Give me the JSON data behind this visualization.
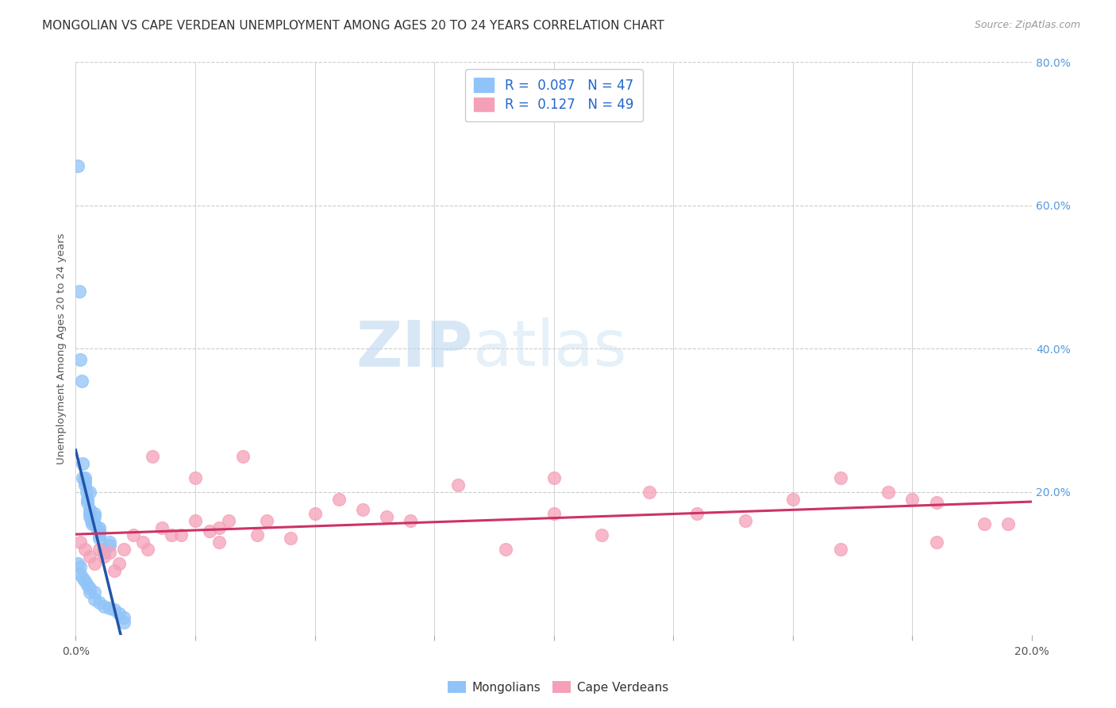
{
  "title": "MONGOLIAN VS CAPE VERDEAN UNEMPLOYMENT AMONG AGES 20 TO 24 YEARS CORRELATION CHART",
  "source": "Source: ZipAtlas.com",
  "ylabel": "Unemployment Among Ages 20 to 24 years",
  "xmin": 0.0,
  "xmax": 0.2,
  "ymin": 0.0,
  "ymax": 0.8,
  "mongolian_R": "0.087",
  "mongolian_N": "47",
  "capeverdean_R": "0.127",
  "capeverdean_N": "49",
  "mongolian_color": "#90c4f8",
  "capeverdean_color": "#f5a0b8",
  "mongolian_trend_color": "#2255aa",
  "capeverdean_trend_color": "#cc3366",
  "legend_label_mongolian": "Mongolians",
  "legend_label_capeverdean": "Cape Verdeans",
  "mongolian_x": [
    0.0005,
    0.0008,
    0.001,
    0.0012,
    0.0015,
    0.0015,
    0.002,
    0.002,
    0.002,
    0.0022,
    0.0025,
    0.0025,
    0.003,
    0.003,
    0.003,
    0.003,
    0.0032,
    0.0035,
    0.004,
    0.004,
    0.004,
    0.0045,
    0.005,
    0.005,
    0.005,
    0.005,
    0.006,
    0.006,
    0.007,
    0.007,
    0.0005,
    0.001,
    0.001,
    0.0015,
    0.002,
    0.0025,
    0.003,
    0.003,
    0.004,
    0.004,
    0.005,
    0.006,
    0.007,
    0.008,
    0.009,
    0.01,
    0.01
  ],
  "mongolian_y": [
    0.655,
    0.48,
    0.385,
    0.355,
    0.24,
    0.22,
    0.215,
    0.21,
    0.22,
    0.2,
    0.19,
    0.185,
    0.175,
    0.17,
    0.165,
    0.2,
    0.16,
    0.155,
    0.17,
    0.165,
    0.155,
    0.15,
    0.145,
    0.14,
    0.135,
    0.15,
    0.115,
    0.12,
    0.13,
    0.125,
    0.1,
    0.095,
    0.085,
    0.08,
    0.075,
    0.07,
    0.065,
    0.06,
    0.06,
    0.05,
    0.045,
    0.04,
    0.038,
    0.035,
    0.03,
    0.025,
    0.018
  ],
  "capeverdean_x": [
    0.001,
    0.002,
    0.003,
    0.004,
    0.005,
    0.006,
    0.007,
    0.008,
    0.009,
    0.01,
    0.012,
    0.014,
    0.015,
    0.016,
    0.018,
    0.02,
    0.022,
    0.025,
    0.025,
    0.028,
    0.03,
    0.03,
    0.032,
    0.035,
    0.038,
    0.04,
    0.045,
    0.05,
    0.055,
    0.06,
    0.065,
    0.07,
    0.08,
    0.09,
    0.1,
    0.1,
    0.11,
    0.12,
    0.13,
    0.14,
    0.15,
    0.16,
    0.16,
    0.17,
    0.175,
    0.18,
    0.18,
    0.19,
    0.195
  ],
  "capeverdean_y": [
    0.13,
    0.12,
    0.11,
    0.1,
    0.12,
    0.11,
    0.115,
    0.09,
    0.1,
    0.12,
    0.14,
    0.13,
    0.12,
    0.25,
    0.15,
    0.14,
    0.14,
    0.22,
    0.16,
    0.145,
    0.15,
    0.13,
    0.16,
    0.25,
    0.14,
    0.16,
    0.135,
    0.17,
    0.19,
    0.175,
    0.165,
    0.16,
    0.21,
    0.12,
    0.22,
    0.17,
    0.14,
    0.2,
    0.17,
    0.16,
    0.19,
    0.12,
    0.22,
    0.2,
    0.19,
    0.185,
    0.13,
    0.155,
    0.155
  ],
  "title_fontsize": 11,
  "source_fontsize": 9,
  "axis_label_fontsize": 9.5,
  "tick_fontsize": 10,
  "legend_fontsize": 12
}
